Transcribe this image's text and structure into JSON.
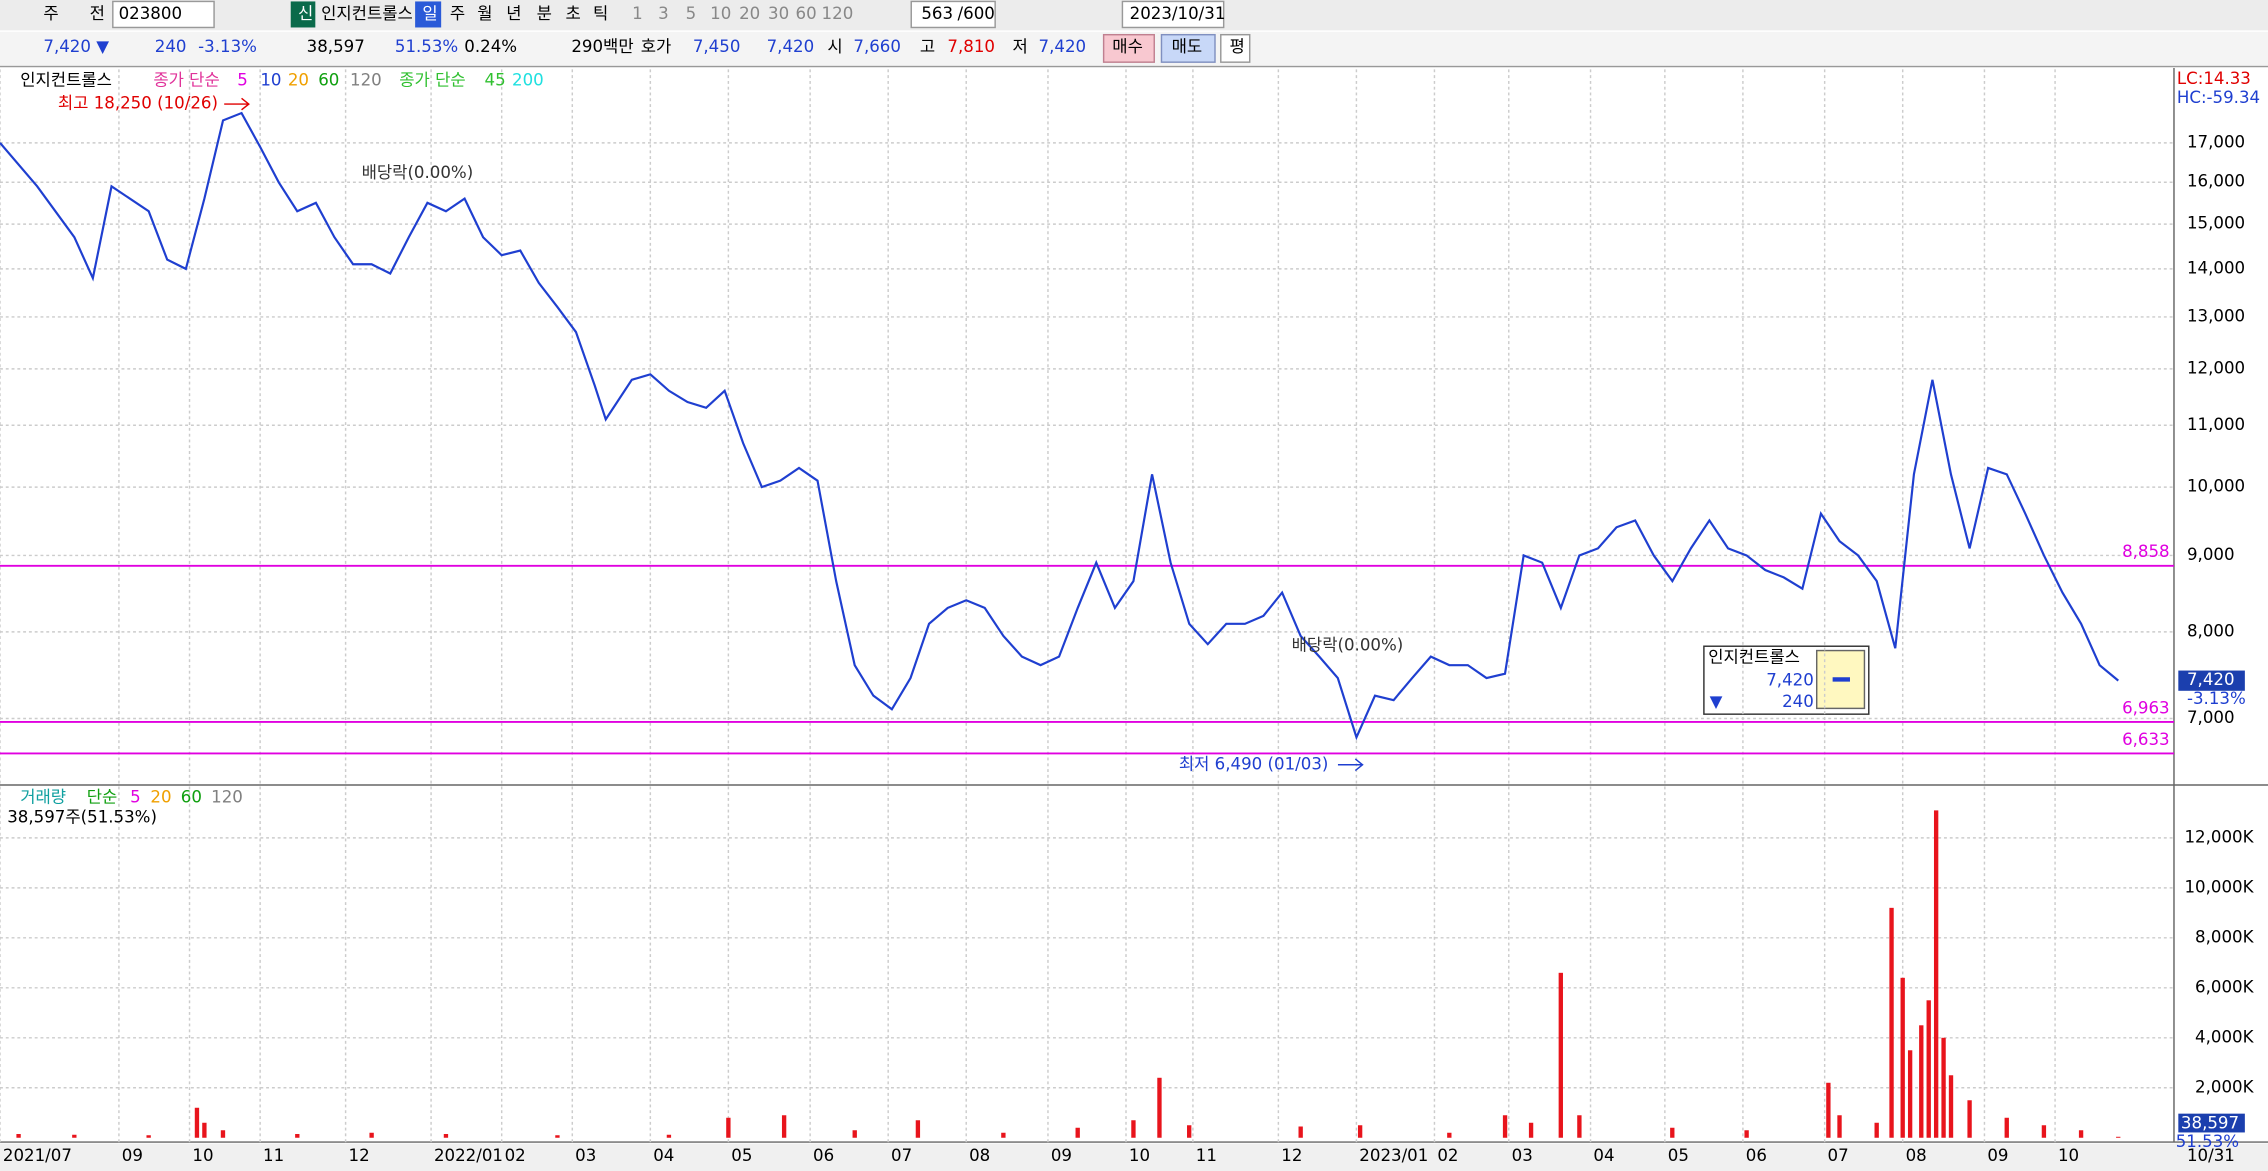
{
  "toolbar": {
    "row1": [
      "주",
      "전",
      "023800",
      "신",
      "인지컨트롤스",
      "일",
      "주",
      "월",
      "년",
      "분",
      "초",
      "틱",
      "1",
      "3",
      "5",
      "10",
      "20",
      "30",
      "60",
      "120",
      "563",
      "/600",
      "2023/10/31"
    ],
    "row2": [
      "7,420 ▼",
      "240",
      "-3.13%",
      "38,597",
      "51.53%",
      "0.24%",
      "290백만",
      "호가",
      "7,450",
      "7,420",
      "시",
      "7,660",
      "고",
      "7,810",
      "저",
      "7,420",
      "매수",
      "매도",
      "평"
    ]
  },
  "chart_data": [
    {
      "type": "line",
      "log_scale": true,
      "grid": true,
      "legend": [
        {
          "label": "인지컨트롤스",
          "color": "#000000"
        },
        {
          "label": "종가 단순",
          "color": "#e0339a"
        },
        {
          "label": "5",
          "color": "#e000e0"
        },
        {
          "label": "10",
          "color": "#1f3fd0"
        },
        {
          "label": "20",
          "color": "#f0a000"
        },
        {
          "label": "60",
          "color": "#10a010"
        },
        {
          "label": "120",
          "color": "#808080"
        },
        {
          "label": "종가 단순",
          "color": "#30c030"
        },
        {
          "label": "45",
          "color": "#30c030"
        },
        {
          "label": "200",
          "color": "#20e0e0"
        }
      ],
      "side_labels": [
        {
          "text": "LC:14.33",
          "color": "#e00000"
        },
        {
          "text": "HC:-59.34",
          "color": "#1f3fd0"
        }
      ],
      "xlim": [
        0,
        585
      ],
      "xticks": [
        {
          "value": 0,
          "label": "2021/07"
        },
        {
          "value": 32,
          "label": "09"
        },
        {
          "value": 51,
          "label": "10"
        },
        {
          "value": 70,
          "label": "11"
        },
        {
          "value": 93,
          "label": "12"
        },
        {
          "value": 116,
          "label": "2022/01"
        },
        {
          "value": 135,
          "label": "02"
        },
        {
          "value": 154,
          "label": "03"
        },
        {
          "value": 175,
          "label": "04"
        },
        {
          "value": 196,
          "label": "05"
        },
        {
          "value": 218,
          "label": "06"
        },
        {
          "value": 239,
          "label": "07"
        },
        {
          "value": 260,
          "label": "08"
        },
        {
          "value": 282,
          "label": "09"
        },
        {
          "value": 303,
          "label": "10"
        },
        {
          "value": 321,
          "label": "11"
        },
        {
          "value": 344,
          "label": "12"
        },
        {
          "value": 365,
          "label": "2023/01"
        },
        {
          "value": 386,
          "label": "02"
        },
        {
          "value": 406,
          "label": "03"
        },
        {
          "value": 428,
          "label": "04"
        },
        {
          "value": 448,
          "label": "05"
        },
        {
          "value": 469,
          "label": "06"
        },
        {
          "value": 491,
          "label": "07"
        },
        {
          "value": 512,
          "label": "08"
        },
        {
          "value": 534,
          "label": "09"
        },
        {
          "value": 553,
          "label": "10"
        }
      ],
      "x_end_label": "10/31",
      "ylim": [
        6360,
        19040
      ],
      "yticks": [
        {
          "value": 7000,
          "label": "7,000"
        },
        {
          "value": 8000,
          "label": "8,000"
        },
        {
          "value": 9000,
          "label": "9,000"
        },
        {
          "value": 10000,
          "label": "10,000"
        },
        {
          "value": 11000,
          "label": "11,000"
        },
        {
          "value": 12000,
          "label": "12,000"
        },
        {
          "value": 13000,
          "label": "13,000"
        },
        {
          "value": 14000,
          "label": "14,000"
        },
        {
          "value": 15000,
          "label": "15,000"
        },
        {
          "value": 16000,
          "label": "16,000"
        },
        {
          "value": 17000,
          "label": "17,000"
        }
      ],
      "x": [
        0,
        10,
        20,
        25,
        30,
        40,
        45,
        50,
        55,
        60,
        65,
        70,
        75,
        80,
        85,
        90,
        95,
        100,
        105,
        110,
        115,
        120,
        125,
        130,
        135,
        140,
        145,
        150,
        155,
        160,
        163,
        170,
        175,
        180,
        185,
        190,
        195,
        200,
        205,
        210,
        215,
        220,
        225,
        230,
        235,
        240,
        245,
        250,
        255,
        260,
        265,
        270,
        275,
        280,
        285,
        290,
        295,
        300,
        305,
        310,
        315,
        320,
        325,
        330,
        335,
        340,
        345,
        350,
        355,
        360,
        365,
        370,
        375,
        380,
        385,
        390,
        395,
        400,
        405,
        410,
        415,
        420,
        425,
        430,
        435,
        440,
        445,
        450,
        455,
        460,
        465,
        470,
        475,
        480,
        485,
        490,
        495,
        500,
        505,
        510,
        515,
        520,
        525,
        530,
        535,
        540,
        545,
        550,
        555,
        560,
        565,
        570
      ],
      "series": [
        {
          "name": "인지컨트롤스",
          "color": "#1f3fd0",
          "values": [
            17000,
            15900,
            14700,
            13800,
            15900,
            15300,
            14200,
            14000,
            15600,
            17600,
            17800,
            16900,
            16000,
            15300,
            15500,
            14700,
            14100,
            14100,
            13900,
            14700,
            15500,
            15300,
            15600,
            14700,
            14300,
            14400,
            13700,
            13200,
            12700,
            11700,
            11100,
            11800,
            11900,
            11600,
            11400,
            11300,
            11600,
            10700,
            10000,
            10100,
            10300,
            10100,
            8650,
            7600,
            7250,
            7100,
            7450,
            8100,
            8300,
            8400,
            8300,
            7950,
            7700,
            7600,
            7700,
            8300,
            8900,
            8300,
            8650,
            10200,
            8900,
            8100,
            7850,
            8100,
            8100,
            8200,
            8500,
            7950,
            7700,
            7450,
            6800,
            7250,
            7200,
            7450,
            7700,
            7600,
            7600,
            7450,
            7500,
            9000,
            8900,
            8300,
            9000,
            9100,
            9400,
            9500,
            9000,
            8650,
            9100,
            9500,
            9100,
            9000,
            8800,
            8700,
            8550,
            9600,
            9200,
            9000,
            8650,
            7800,
            10200,
            11800,
            10200,
            9100,
            10300,
            10200,
            9600,
            9000,
            8500,
            8100,
            7600,
            7420
          ]
        }
      ],
      "hlines": {
        "color": "#e000e0",
        "lines": [
          {
            "value": 8858,
            "label": "8,858"
          },
          {
            "value": 6963,
            "label": "6,963"
          },
          {
            "value": 6633,
            "label": "6,633"
          }
        ]
      },
      "annotations": [
        "최고 18,250 (10/26)",
        "배당락(0.00%)",
        "배당락(0.00%)",
        "최저 6,490 (01/03)"
      ],
      "price_tag": {
        "value": 7420,
        "label": "7,420",
        "change": "-3.13%"
      },
      "info_box": {
        "name": "인지컨트롤스",
        "price": "7,420",
        "change": "240"
      }
    },
    {
      "type": "bar",
      "grid": true,
      "color": "#e8141c",
      "legend": [
        {
          "label": "거래량",
          "color": "#10a0a0"
        },
        {
          "label": "단순",
          "color": "#10a010"
        },
        {
          "label": "5",
          "color": "#e000e0"
        },
        {
          "label": "20",
          "color": "#f0a000"
        },
        {
          "label": "60",
          "color": "#10a010"
        },
        {
          "label": "120",
          "color": "#808080"
        }
      ],
      "subtitle": "38,597주(51.53%)",
      "xlim": [
        0,
        585
      ],
      "ylim": [
        0,
        14000
      ],
      "yticks": [
        {
          "value": 2000,
          "label": "2,000K"
        },
        {
          "value": 4000,
          "label": "4,000K"
        },
        {
          "value": 6000,
          "label": "6,000K"
        },
        {
          "value": 8000,
          "label": "8,000K"
        },
        {
          "value": 10000,
          "label": "10,000K"
        },
        {
          "value": 12000,
          "label": "12,000K"
        }
      ],
      "x": [
        5,
        20,
        40,
        53,
        55,
        60,
        80,
        100,
        120,
        150,
        180,
        196,
        211,
        230,
        247,
        270,
        290,
        305,
        312,
        320,
        350,
        366,
        390,
        405,
        412,
        420,
        425,
        450,
        470,
        492,
        495,
        505,
        509,
        512,
        514,
        517,
        519,
        521,
        523,
        525,
        530,
        540,
        550,
        560,
        570
      ],
      "values": [
        150,
        120,
        100,
        1200,
        600,
        300,
        150,
        200,
        150,
        100,
        120,
        800,
        900,
        300,
        700,
        200,
        400,
        700,
        2400,
        500,
        450,
        500,
        200,
        900,
        600,
        6600,
        900,
        400,
        300,
        2200,
        900,
        600,
        9200,
        6400,
        3500,
        4500,
        5500,
        13100,
        4000,
        2500,
        1500,
        800,
        500,
        300,
        38.597
      ],
      "volume_tag": {
        "value": 38.597,
        "label": "38,597",
        "ratio": "51.53%"
      }
    }
  ]
}
